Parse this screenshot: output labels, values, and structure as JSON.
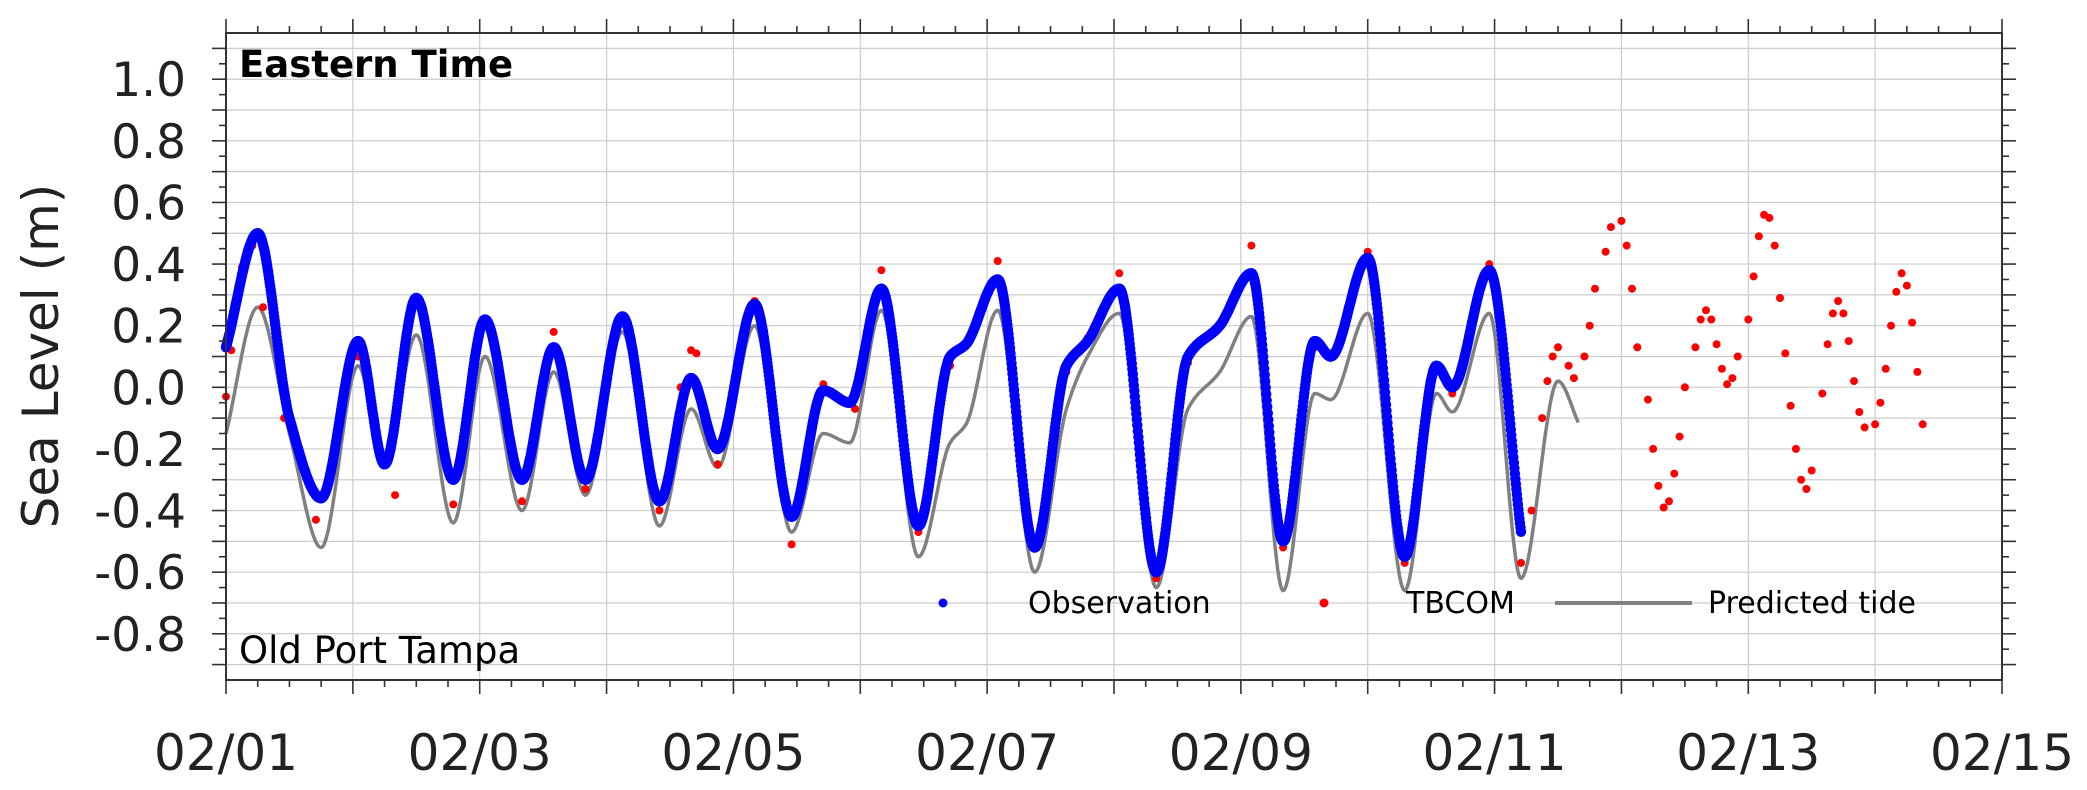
{
  "chart_data": {
    "type": "line",
    "title": "",
    "xlabel": "",
    "ylabel": "Sea Level (m)",
    "ylim": [
      -0.95,
      1.15
    ],
    "xlim": [
      "02/01",
      "02/15"
    ],
    "grid": true,
    "legend_position": "bottom-right",
    "annotations": {
      "top_left": "Eastern Time",
      "bottom_left": "Old Port Tampa"
    },
    "y_ticks": [
      "1.0",
      "0.8",
      "0.6",
      "0.4",
      "0.2",
      "0.0",
      "-0.2",
      "-0.4",
      "-0.6",
      "-0.8"
    ],
    "x_ticks": [
      "02/01",
      "02/03",
      "02/05",
      "02/07",
      "02/09",
      "02/11",
      "02/13",
      "02/15"
    ],
    "colors": {
      "observation": "#0000ff",
      "tbcom": "#ff0000",
      "predicted": "#808080"
    },
    "legend": [
      "Observation",
      "TBCOM",
      "Predicted tide"
    ],
    "series": [
      {
        "name": "Observation",
        "style": "dots",
        "points": [
          [
            "02/01 00:00",
            0.13
          ],
          [
            "02/01 06:00",
            0.5
          ],
          [
            "02/01 12:00",
            -0.1
          ],
          [
            "02/01 18:00",
            -0.36
          ],
          [
            "02/02 01:00",
            0.15
          ],
          [
            "02/02 06:00",
            -0.25
          ],
          [
            "02/02 12:00",
            0.29
          ],
          [
            "02/02 19:00",
            -0.3
          ],
          [
            "02/03 01:00",
            0.22
          ],
          [
            "02/03 08:00",
            -0.3
          ],
          [
            "02/03 14:00",
            0.13
          ],
          [
            "02/03 20:00",
            -0.3
          ],
          [
            "02/04 03:00",
            0.23
          ],
          [
            "02/04 10:00",
            -0.37
          ],
          [
            "02/04 16:00",
            0.03
          ],
          [
            "02/04 21:00",
            -0.2
          ],
          [
            "02/05 04:00",
            0.27
          ],
          [
            "02/05 11:00",
            -0.42
          ],
          [
            "02/05 17:00",
            -0.01
          ],
          [
            "02/05 22:00",
            -0.05
          ],
          [
            "02/06 04:00",
            0.32
          ],
          [
            "02/06 11:00",
            -0.45
          ],
          [
            "02/06 17:00",
            0.1
          ],
          [
            "02/06 20:00",
            0.14
          ],
          [
            "02/07 02:00",
            0.35
          ],
          [
            "02/07 09:00",
            -0.52
          ],
          [
            "02/07 15:00",
            0.07
          ],
          [
            "02/07 19:00",
            0.15
          ],
          [
            "02/08 01:00",
            0.32
          ],
          [
            "02/08 08:00",
            -0.6
          ],
          [
            "02/08 14:00",
            0.1
          ],
          [
            "02/08 20:00",
            0.2
          ],
          [
            "02/09 02:00",
            0.37
          ],
          [
            "02/09 08:00",
            -0.5
          ],
          [
            "02/09 14:00",
            0.15
          ],
          [
            "02/09 17:00",
            0.1
          ],
          [
            "02/10 00:00",
            0.42
          ],
          [
            "02/10 07:00",
            -0.55
          ],
          [
            "02/10 13:00",
            0.07
          ],
          [
            "02/10 16:00",
            0.0
          ],
          [
            "02/10 23:00",
            0.38
          ],
          [
            "02/11 05:00",
            -0.47
          ]
        ]
      },
      {
        "name": "TBCOM",
        "style": "dots",
        "points": [
          [
            "02/01 00:00",
            -0.03
          ],
          [
            "02/01 01:00",
            0.12
          ],
          [
            "02/01 03:00",
            0.39
          ],
          [
            "02/01 05:00",
            0.46
          ],
          [
            "02/01 07:00",
            0.26
          ],
          [
            "02/01 11:00",
            -0.1
          ],
          [
            "02/01 17:00",
            -0.43
          ],
          [
            "02/02 01:00",
            0.1
          ],
          [
            "02/02 08:00",
            -0.35
          ],
          [
            "02/02 12:00",
            0.29
          ],
          [
            "02/02 19:00",
            -0.38
          ],
          [
            "02/03 01:00",
            0.2
          ],
          [
            "02/03 08:00",
            -0.37
          ],
          [
            "02/03 14:00",
            0.18
          ],
          [
            "02/03 20:00",
            -0.33
          ],
          [
            "02/04 03:00",
            0.22
          ],
          [
            "02/04 10:00",
            -0.4
          ],
          [
            "02/04 14:00",
            0.0
          ],
          [
            "02/04 16:00",
            0.12
          ],
          [
            "02/04 17:00",
            0.11
          ],
          [
            "02/04 21:00",
            -0.25
          ],
          [
            "02/05 04:00",
            0.28
          ],
          [
            "02/05 11:00",
            -0.51
          ],
          [
            "02/05 17:00",
            0.01
          ],
          [
            "02/05 23:00",
            -0.07
          ],
          [
            "02/06 04:00",
            0.38
          ],
          [
            "02/06 11:00",
            -0.47
          ],
          [
            "02/06 17:00",
            0.07
          ],
          [
            "02/06 20:00",
            0.14
          ],
          [
            "02/07 02:00",
            0.41
          ],
          [
            "02/07 09:00",
            -0.52
          ],
          [
            "02/07 15:00",
            0.05
          ],
          [
            "02/07 19:00",
            0.16
          ],
          [
            "02/08 01:00",
            0.37
          ],
          [
            "02/08 08:00",
            -0.62
          ],
          [
            "02/08 14:00",
            0.08
          ],
          [
            "02/08 20:00",
            0.2
          ],
          [
            "02/09 02:00",
            0.46
          ],
          [
            "02/09 08:00",
            -0.52
          ],
          [
            "02/09 14:00",
            0.13
          ],
          [
            "02/09 17:00",
            0.11
          ],
          [
            "02/10 00:00",
            0.44
          ],
          [
            "02/10 07:00",
            -0.57
          ],
          [
            "02/10 13:00",
            0.07
          ],
          [
            "02/10 16:00",
            -0.02
          ],
          [
            "02/10 23:00",
            0.4
          ],
          [
            "02/11 05:00",
            -0.57
          ],
          [
            "02/11 07:00",
            -0.4
          ],
          [
            "02/11 09:00",
            -0.1
          ],
          [
            "02/11 10:00",
            0.02
          ],
          [
            "02/11 11:00",
            0.1
          ],
          [
            "02/11 12:00",
            0.13
          ],
          [
            "02/11 14:00",
            0.07
          ],
          [
            "02/11 15:00",
            0.03
          ],
          [
            "02/11 17:00",
            0.1
          ],
          [
            "02/11 18:00",
            0.2
          ],
          [
            "02/11 19:00",
            0.32
          ],
          [
            "02/11 21:00",
            0.44
          ],
          [
            "02/11 22:00",
            0.52
          ],
          [
            "02/12 00:00",
            0.54
          ],
          [
            "02/12 01:00",
            0.46
          ],
          [
            "02/12 02:00",
            0.32
          ],
          [
            "02/12 03:00",
            0.13
          ],
          [
            "02/12 05:00",
            -0.04
          ],
          [
            "02/12 06:00",
            -0.2
          ],
          [
            "02/12 07:00",
            -0.32
          ],
          [
            "02/12 08:00",
            -0.39
          ],
          [
            "02/12 09:00",
            -0.37
          ],
          [
            "02/12 10:00",
            -0.28
          ],
          [
            "02/12 11:00",
            -0.16
          ],
          [
            "02/12 12:00",
            0.0
          ],
          [
            "02/12 14:00",
            0.13
          ],
          [
            "02/12 15:00",
            0.22
          ],
          [
            "02/12 16:00",
            0.25
          ],
          [
            "02/12 17:00",
            0.22
          ],
          [
            "02/12 18:00",
            0.14
          ],
          [
            "02/12 19:00",
            0.06
          ],
          [
            "02/12 20:00",
            0.01
          ],
          [
            "02/12 21:00",
            0.03
          ],
          [
            "02/12 22:00",
            0.1
          ],
          [
            "02/13 00:00",
            0.22
          ],
          [
            "02/13 01:00",
            0.36
          ],
          [
            "02/13 02:00",
            0.49
          ],
          [
            "02/13 03:00",
            0.56
          ],
          [
            "02/13 04:00",
            0.55
          ],
          [
            "02/13 05:00",
            0.46
          ],
          [
            "02/13 06:00",
            0.29
          ],
          [
            "02/13 07:00",
            0.11
          ],
          [
            "02/13 08:00",
            -0.06
          ],
          [
            "02/13 09:00",
            -0.2
          ],
          [
            "02/13 10:00",
            -0.3
          ],
          [
            "02/13 11:00",
            -0.33
          ],
          [
            "02/13 12:00",
            -0.27
          ],
          [
            "02/13 14:00",
            -0.02
          ],
          [
            "02/13 15:00",
            0.14
          ],
          [
            "02/13 16:00",
            0.24
          ],
          [
            "02/13 17:00",
            0.28
          ],
          [
            "02/13 18:00",
            0.24
          ],
          [
            "02/13 19:00",
            0.15
          ],
          [
            "02/13 20:00",
            0.02
          ],
          [
            "02/13 21:00",
            -0.08
          ],
          [
            "02/13 22:00",
            -0.13
          ],
          [
            "02/14 00:00",
            -0.12
          ],
          [
            "02/14 01:00",
            -0.05
          ],
          [
            "02/14 02:00",
            0.06
          ],
          [
            "02/14 03:00",
            0.2
          ],
          [
            "02/14 04:00",
            0.31
          ],
          [
            "02/14 05:00",
            0.37
          ],
          [
            "02/14 06:00",
            0.33
          ],
          [
            "02/14 07:00",
            0.21
          ],
          [
            "02/14 08:00",
            0.05
          ],
          [
            "02/14 09:00",
            -0.12
          ]
        ]
      },
      {
        "name": "Predicted tide",
        "style": "line",
        "points": [
          [
            "02/01 00:00",
            -0.15
          ],
          [
            "02/01 06:00",
            0.26
          ],
          [
            "02/01 12:00",
            -0.15
          ],
          [
            "02/01 18:00",
            -0.52
          ],
          [
            "02/02 01:00",
            0.07
          ],
          [
            "02/02 06:00",
            -0.25
          ],
          [
            "02/02 12:00",
            0.17
          ],
          [
            "02/02 19:00",
            -0.44
          ],
          [
            "02/03 01:00",
            0.1
          ],
          [
            "02/03 08:00",
            -0.4
          ],
          [
            "02/03 14:00",
            0.05
          ],
          [
            "02/03 20:00",
            -0.35
          ],
          [
            "02/04 03:00",
            0.18
          ],
          [
            "02/04 10:00",
            -0.45
          ],
          [
            "02/04 16:00",
            -0.07
          ],
          [
            "02/04 21:00",
            -0.26
          ],
          [
            "02/05 04:00",
            0.2
          ],
          [
            "02/05 11:00",
            -0.47
          ],
          [
            "02/05 17:00",
            -0.15
          ],
          [
            "02/05 22:00",
            -0.18
          ],
          [
            "02/06 04:00",
            0.25
          ],
          [
            "02/06 11:00",
            -0.55
          ],
          [
            "02/06 17:00",
            -0.18
          ],
          [
            "02/06 20:00",
            -0.12
          ],
          [
            "02/07 02:00",
            0.25
          ],
          [
            "02/07 09:00",
            -0.6
          ],
          [
            "02/07 15:00",
            -0.07
          ],
          [
            "02/07 19:00",
            0.1
          ],
          [
            "02/08 01:00",
            0.24
          ],
          [
            "02/08 08:00",
            -0.65
          ],
          [
            "02/08 14:00",
            -0.07
          ],
          [
            "02/08 20:00",
            0.05
          ],
          [
            "02/09 02:00",
            0.23
          ],
          [
            "02/09 08:00",
            -0.66
          ],
          [
            "02/09 14:00",
            -0.02
          ],
          [
            "02/09 17:00",
            -0.04
          ],
          [
            "02/10 00:00",
            0.24
          ],
          [
            "02/10 07:00",
            -0.66
          ],
          [
            "02/10 13:00",
            -0.02
          ],
          [
            "02/10 16:00",
            -0.08
          ],
          [
            "02/10 23:00",
            0.24
          ],
          [
            "02/11 05:00",
            -0.62
          ],
          [
            "02/11 12:00",
            0.02
          ],
          [
            "02/11 16:00",
            -0.12
          ]
        ]
      }
    ]
  }
}
